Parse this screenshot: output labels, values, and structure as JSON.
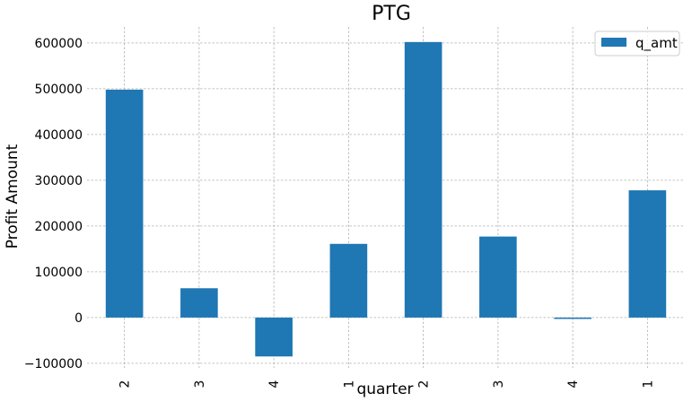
{
  "chart_data": {
    "type": "bar",
    "title": "PTG",
    "xlabel": "quarter",
    "ylabel": "Profit Amount",
    "categories": [
      "2",
      "3",
      "4",
      "1",
      "2",
      "3",
      "4",
      "1"
    ],
    "series": [
      {
        "name": "q_amt",
        "color": "#1f77b4",
        "values": [
          498000,
          64000,
          -85000,
          161000,
          602000,
          177000,
          -3000,
          278000
        ]
      }
    ],
    "ylim": [
      -110000,
      635000
    ],
    "yticks": [
      -100000,
      0,
      100000,
      200000,
      300000,
      400000,
      500000,
      600000
    ],
    "ytick_labels": [
      "−100000",
      "0",
      "100000",
      "200000",
      "300000",
      "400000",
      "500000",
      "600000"
    ],
    "grid": true,
    "legend": "top-right"
  }
}
